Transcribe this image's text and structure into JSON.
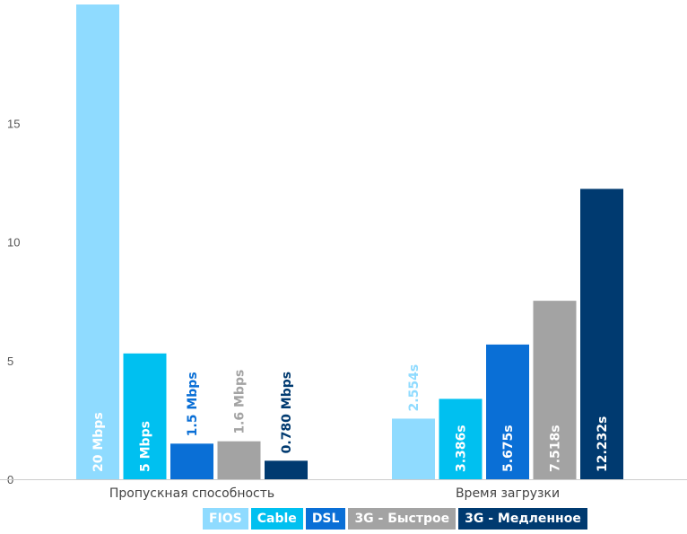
{
  "chart_data": {
    "type": "bar",
    "categories": [
      "Пропускная способность",
      "Время загрузки"
    ],
    "series": [
      {
        "name": "FIOS",
        "color": "#8fdbff",
        "values": [
          20,
          2.554
        ],
        "labels": [
          "20 Mbps",
          "2.554s"
        ]
      },
      {
        "name": "Cable",
        "color": "#00c0f0",
        "values": [
          5.3,
          3.386
        ],
        "labels": [
          "5 Mbps",
          "3.386s"
        ]
      },
      {
        "name": "DSL",
        "color": "#0a6fd6",
        "values": [
          1.5,
          5.675
        ],
        "labels": [
          "1.5 Mbps",
          "5.675s"
        ]
      },
      {
        "name": "3G - Быстрое",
        "color": "#a3a3a3",
        "values": [
          1.6,
          7.518
        ],
        "labels": [
          "1.6 Mbps",
          "7.518s"
        ]
      },
      {
        "name": "3G - Медленное",
        "color": "#003a70",
        "values": [
          0.78,
          12.232
        ],
        "labels": [
          "0.780 Mbps",
          "12.232s"
        ]
      }
    ],
    "yticks": [
      0,
      5,
      10,
      15
    ],
    "ylim": [
      0,
      20
    ],
    "grid": false,
    "legend_position": "bottom"
  }
}
